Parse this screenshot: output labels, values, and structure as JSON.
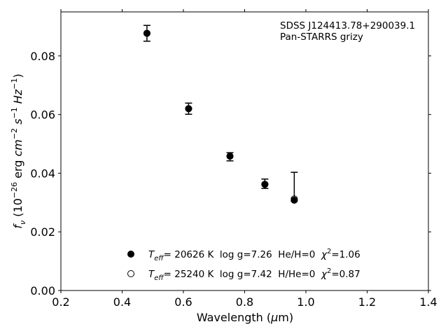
{
  "chart_data": {
    "type": "scatter",
    "xlabel": "Wavelength (μm)",
    "ylabel": "f_ν (10^-26 erg cm^-2 s^-1 Hz^-1)",
    "xlim": [
      0.2,
      1.4
    ],
    "ylim": [
      0.0,
      0.095
    ],
    "x_ticks": [
      "0.2",
      "0.4",
      "0.6",
      "0.8",
      "1.0",
      "1.2",
      "1.4"
    ],
    "y_ticks": [
      "0.00",
      "0.02",
      "0.04",
      "0.06",
      "0.08"
    ],
    "grid": false,
    "annotation": [
      "SDSS J124413.78+290039.1",
      "Pan-STARRS grizy"
    ],
    "series": [
      {
        "marker": "errorbar",
        "x": [
          0.481,
          0.617,
          0.752,
          0.866,
          0.962
        ],
        "y": [
          0.0877,
          0.062,
          0.0455,
          0.0363,
          0.031
        ],
        "y_low": [
          0.085,
          0.0601,
          0.0442,
          0.0348,
          0.0305
        ],
        "y_high": [
          0.0904,
          0.0639,
          0.047,
          0.038,
          0.0403
        ]
      },
      {
        "marker": "filled-circle",
        "x": [
          0.481,
          0.617,
          0.752,
          0.866,
          0.962
        ],
        "y": [
          0.0877,
          0.062,
          0.0458,
          0.0362,
          0.0308
        ]
      },
      {
        "marker": "open-circle",
        "x": [
          0.481,
          0.617,
          0.752,
          0.866,
          0.962
        ],
        "y": [
          0.0877,
          0.062,
          0.0458,
          0.0362,
          0.0312
        ]
      }
    ],
    "legend": {
      "placement": "lower-center",
      "entries": [
        {
          "marker": "filled-circle",
          "teff_label": "T",
          "teff_sub": "eff",
          "text": "= 20626 K  log g=7.26  He/H=0  ",
          "chi_label": "χ",
          "chi_sup": "2",
          "chi_value": "=1.06"
        },
        {
          "marker": "open-circle",
          "teff_label": "T",
          "teff_sub": "eff",
          "text": "= 25240 K  log g=7.42  H/He=0  ",
          "chi_label": "χ",
          "chi_sup": "2",
          "chi_value": "=0.87"
        }
      ]
    }
  }
}
